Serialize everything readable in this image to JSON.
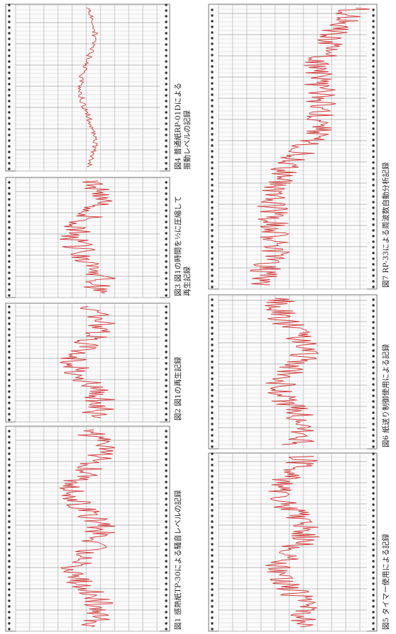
{
  "figures": [
    {
      "caption": [
        "図1 感熱紙TP-30による騒音レベルの記録"
      ]
    },
    {
      "caption": [
        "図2 図1の再生記録"
      ]
    },
    {
      "caption": [
        "図3 図1の時間を½に圧縮して",
        "再生記録"
      ]
    },
    {
      "caption": [
        "図4 普通紙RP-01Dによる",
        "振動レベルの記録"
      ]
    },
    {
      "caption": [
        "図5 タイマー使用による記録"
      ]
    },
    {
      "caption": [
        "図6 紙送り制御使用による記録"
      ]
    },
    {
      "caption": [
        "図7 RP-33による周波数自動分析記録"
      ]
    }
  ]
}
